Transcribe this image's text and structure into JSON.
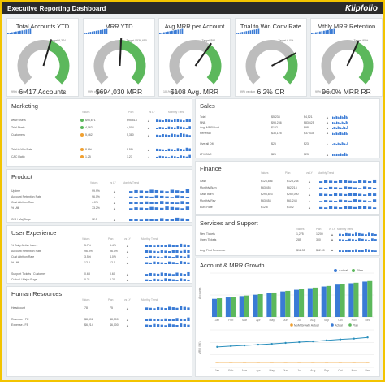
{
  "header": {
    "title": "Executive Reporting Dashboard",
    "brand": "Klipfolio"
  },
  "colors": {
    "green": "#5cb85c",
    "grey": "#bdbdbd",
    "blue": "#3a7bd5",
    "orange": "#f0a030",
    "needle": "#222222"
  },
  "gauges": [
    {
      "title": "Total Accounts YTD",
      "value": "6,417 Accounts",
      "target": "Target 6,374",
      "foot": "99% vs plan",
      "fill": 0.55
    },
    {
      "title": "MRR YTD",
      "value": "$694,030 MRR",
      "target": "Target $536,650",
      "foot": "99% vs plan",
      "fill": 0.5
    },
    {
      "title": "Avg MRR per Account",
      "value": "$108 Avg. MRR",
      "target": "Target $92",
      "foot": "101% vs plan",
      "fill": 0.62
    },
    {
      "title": "Trial to Win Conv Rate",
      "value": "6.2% CR",
      "target": "Target 6.0%",
      "foot": "99% vs plan",
      "fill": 0.72
    },
    {
      "title": "Mthly MRR Retention",
      "value": "96.0% MRR RR",
      "target": "Target 95%",
      "foot": "99% vs plan",
      "fill": 0.58
    }
  ],
  "marketing": {
    "title": "Marketing",
    "headers": [
      "Values",
      "Plan",
      "vs LY",
      "Monthly Trend"
    ],
    "rows": [
      {
        "label": "www Users",
        "value": "$95,671",
        "plan": "$95,514",
        "status": "green"
      },
      {
        "label": "Trial Starts",
        "value": "4,062",
        "plan": "4,004",
        "status": "green"
      },
      {
        "label": "Customers",
        "value": "5,462",
        "plan": "5,380",
        "status": "orange"
      },
      {
        "label": "",
        "value": "",
        "plan": "",
        "status": ""
      },
      {
        "label": "Trial to Win Rate",
        "value": "8.6%",
        "plan": "8.5%",
        "status": "orange"
      },
      {
        "label": "CAC Ratio",
        "value": "1.25",
        "plan": "1.23",
        "status": "orange"
      }
    ]
  },
  "sales": {
    "title": "Sales",
    "rows": [
      {
        "label": "Total",
        "value": "$5,234",
        "plan": "$4,521"
      },
      {
        "label": "NNB",
        "value": "$98,236",
        "plan": "$83,425"
      },
      {
        "label": "Avg. MRR/Acct",
        "value": "$102",
        "plan": "$98"
      },
      {
        "label": "Renewal",
        "value": "$35,125",
        "plan": "$37,435"
      },
      {
        "label": "",
        "value": "",
        "plan": ""
      },
      {
        "label": "Overall DM",
        "value": "$25",
        "plan": "$23"
      },
      {
        "label": "",
        "value": "",
        "plan": ""
      },
      {
        "label": "LTV/CAC",
        "value": "$25",
        "plan": "$23"
      }
    ]
  },
  "product": {
    "title": "Product",
    "headers": [
      "Values",
      "vs LY",
      "Monthly Trend"
    ],
    "rows": [
      {
        "label": "Uptime",
        "value": "99.9%"
      },
      {
        "label": "Account Retention Rate",
        "value": "96.0%"
      },
      {
        "label": "Cust Attrition Rate",
        "value": "4.0%"
      },
      {
        "label": "% Util",
        "value": "73.2%"
      },
      {
        "label": "",
        "value": ""
      },
      {
        "label": "O/S / Maj Bugs",
        "value": "12.5"
      }
    ]
  },
  "finance": {
    "title": "Finance",
    "headers": [
      "Values",
      "Plan",
      "vs LY",
      "Monthly Trend"
    ],
    "rows": [
      {
        "label": "Cash",
        "value": "$126,836",
        "plan": "$123,254"
      },
      {
        "label": "Monthly Burn",
        "value": "$63,456",
        "plan": "$62,215"
      },
      {
        "label": "Cash Burn",
        "value": "$295,823",
        "plan": "$250,000"
      },
      {
        "label": "Monthly Rev",
        "value": "$63,454",
        "plan": "$61,248"
      },
      {
        "label": "Burn Rate",
        "value": "$12.5",
        "plan": "$10.2"
      }
    ]
  },
  "ux": {
    "title": "User Experience",
    "headers": [
      "Values",
      "Plan",
      "vs LY",
      "Monthly Trend"
    ],
    "rows": [
      {
        "label": "% Daily Active Users",
        "value": "5.7%",
        "plan": "5.4%"
      },
      {
        "label": "Account Retention Rate",
        "value": "96.5%",
        "plan": "96.0%"
      },
      {
        "label": "Cust Attrition Rate",
        "value": "3.5%",
        "plan": "4.0%"
      },
      {
        "label": "% Util",
        "value": "12.2",
        "plan": "12.0"
      },
      {
        "label": "",
        "value": "",
        "plan": ""
      },
      {
        "label": "Support Tickets / Customer",
        "value": "0.68",
        "plan": "0.60"
      },
      {
        "label": "Critical / Major Bugs",
        "value": "0.21",
        "plan": "0.20"
      }
    ]
  },
  "services": {
    "title": "Services and Support",
    "headers": [
      "Values",
      "Plan",
      "vs LY",
      "Monthly Trend"
    ],
    "rows": [
      {
        "label": "New Tickets",
        "value": "1,275",
        "plan": "1,200"
      },
      {
        "label": "Open Tickets",
        "value": "285",
        "plan": "300"
      },
      {
        "label": "",
        "value": "",
        "plan": ""
      },
      {
        "label": "Avg. First Response",
        "value": "$12.35",
        "plan": "$12.00"
      }
    ]
  },
  "hr": {
    "title": "Human Resources",
    "headers": [
      "Values",
      "Plan",
      "vs LY",
      "Monthly Trend"
    ],
    "rows": [
      {
        "label": "Headcount",
        "value": "78",
        "plan": "75"
      },
      {
        "label": "",
        "value": "",
        "plan": ""
      },
      {
        "label": "Revenue / FE",
        "value": "$8,896",
        "plan": "$8,500"
      },
      {
        "label": "Expense / FE",
        "value": "$6,214",
        "plan": "$6,000"
      }
    ]
  },
  "growth": {
    "title": "Account & MRR Growth",
    "legend1": [
      "Actual",
      "Plan"
    ],
    "legend2": [
      "MoM Growth Actual",
      "Actual",
      "Plan"
    ],
    "ylabel1": "Accounts",
    "ylabel2": "MRR ($K)",
    "months": [
      "Jan",
      "Feb",
      "Mar",
      "Apr",
      "May",
      "Jun",
      "Jul",
      "Aug",
      "Sep",
      "Oct",
      "Nov",
      "Dec"
    ]
  },
  "chart_data": [
    {
      "type": "bar",
      "categories": [
        "Jan",
        "Feb",
        "Mar",
        "Apr",
        "May",
        "Jun",
        "Jul",
        "Aug",
        "Sep",
        "Oct",
        "Nov",
        "Dec"
      ],
      "series": [
        {
          "name": "Actual",
          "values": [
            3300,
            3550,
            3800,
            4050,
            4300,
            4650,
            4950,
            5250,
            5550,
            5900,
            6150,
            6450
          ]
        },
        {
          "name": "Plan",
          "values": [
            3400,
            3650,
            3900,
            4150,
            4450,
            4750,
            5050,
            5350,
            5650,
            6000,
            6250,
            6550
          ]
        }
      ],
      "ylim": [
        0,
        8000
      ],
      "ylabel": "Accounts"
    },
    {
      "type": "line",
      "categories": [
        "Jan",
        "Feb",
        "Mar",
        "Apr",
        "May",
        "Jun",
        "Jul",
        "Aug",
        "Sep",
        "Oct",
        "Nov",
        "Dec"
      ],
      "series": [
        {
          "name": "Actual",
          "values": [
            410,
            425,
            440,
            455,
            470,
            490,
            505,
            520,
            540,
            560,
            575,
            600
          ]
        },
        {
          "name": "Plan",
          "values": [
            100,
            100,
            100,
            100,
            100,
            100,
            100,
            100,
            100,
            100,
            100,
            100
          ]
        }
      ],
      "ylim": [
        0,
        750
      ],
      "ylabel": "MRR ($K)"
    }
  ]
}
